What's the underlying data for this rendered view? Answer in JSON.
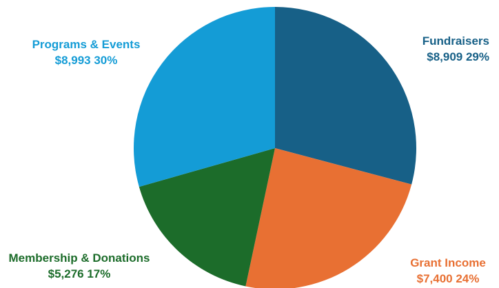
{
  "chart_data": {
    "type": "pie",
    "title": "",
    "legend": "none",
    "slices": [
      {
        "label": "Fundraisers",
        "amount": "$8,909",
        "percent": "29%",
        "value": 8909,
        "color": "#176087"
      },
      {
        "label": "Grant Income",
        "amount": "$7,400",
        "percent": "24%",
        "value": 7400,
        "color": "#E87033"
      },
      {
        "label": "Membership & Donations",
        "amount": "$5,276",
        "percent": "17%",
        "value": 5276,
        "color": "#1C6C2A"
      },
      {
        "label": "Programs & Events",
        "amount": "$8,993",
        "percent": "30%",
        "value": 8993,
        "color": "#149CD6"
      }
    ]
  }
}
